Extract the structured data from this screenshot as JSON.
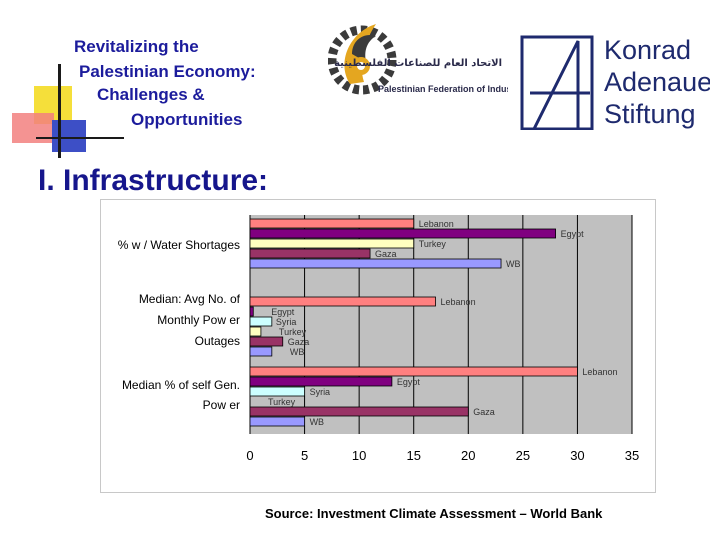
{
  "header": {
    "title_lines": [
      "Revitalizing the",
      "Palestinian Economy:",
      "Challenges &",
      "Opportunities"
    ],
    "pfi_logo": {
      "arabic_text": "الاتحاد العام للصناعات الفلسطينية",
      "english_text": "Palestinian Federation of Industries"
    },
    "kas_logo": {
      "lines": [
        "Konrad",
        "Adenauer",
        "Stiftung"
      ]
    }
  },
  "section_heading": "I. Infrastructure:",
  "source_note": "Source: Investment Climate Assessment – World Bank",
  "colors": {
    "title": "#1c1c9c",
    "heading": "#16168c",
    "plot_background": "#c0c0c0",
    "grid": "#000000"
  },
  "chart_data": {
    "type": "bar",
    "orientation": "horizontal",
    "title": "",
    "xlabel": "",
    "ylabel": "",
    "xlim": [
      0,
      35
    ],
    "xticks": [
      0,
      5,
      10,
      15,
      20,
      25,
      30,
      35
    ],
    "grid": true,
    "legend": "none",
    "groups": [
      {
        "label": "% w / Water Shortages",
        "bars": [
          {
            "country": "Lebanon",
            "value": 15,
            "color": "#ff8080"
          },
          {
            "country": "Egypt",
            "value": 28,
            "color": "#800080"
          },
          {
            "country": "Turkey",
            "value": 15,
            "color": "#ffffc0"
          },
          {
            "country": "Gaza",
            "value": 11,
            "color": "#993366"
          },
          {
            "country": "WB",
            "value": 23,
            "color": "#9999ff"
          }
        ]
      },
      {
        "label": "Median: Avg No. of Monthly Power Outages",
        "bars": [
          {
            "country": "Lebanon",
            "value": 17,
            "color": "#ff8080"
          },
          {
            "country": "Egypt",
            "value": 0.3,
            "color": "#800080"
          },
          {
            "country": "Syria",
            "value": 2,
            "color": "#ccffff"
          },
          {
            "country": "Turkey",
            "value": 1,
            "color": "#ffffc0"
          },
          {
            "country": "Gaza",
            "value": 3,
            "color": "#993366"
          },
          {
            "country": "WB",
            "value": 2,
            "color": "#9999ff"
          }
        ]
      },
      {
        "label": "Median % of self Gen. Power",
        "bars": [
          {
            "country": "Lebanon",
            "value": 30,
            "color": "#ff8080"
          },
          {
            "country": "Egypt",
            "value": 13,
            "color": "#800080"
          },
          {
            "country": "Syria",
            "value": 5,
            "color": "#ccffff"
          },
          {
            "country": "Turkey",
            "value": 0,
            "color": "#ffffc0"
          },
          {
            "country": "Gaza",
            "value": 20,
            "color": "#993366"
          },
          {
            "country": "WB",
            "value": 5,
            "color": "#9999ff"
          }
        ]
      }
    ]
  }
}
